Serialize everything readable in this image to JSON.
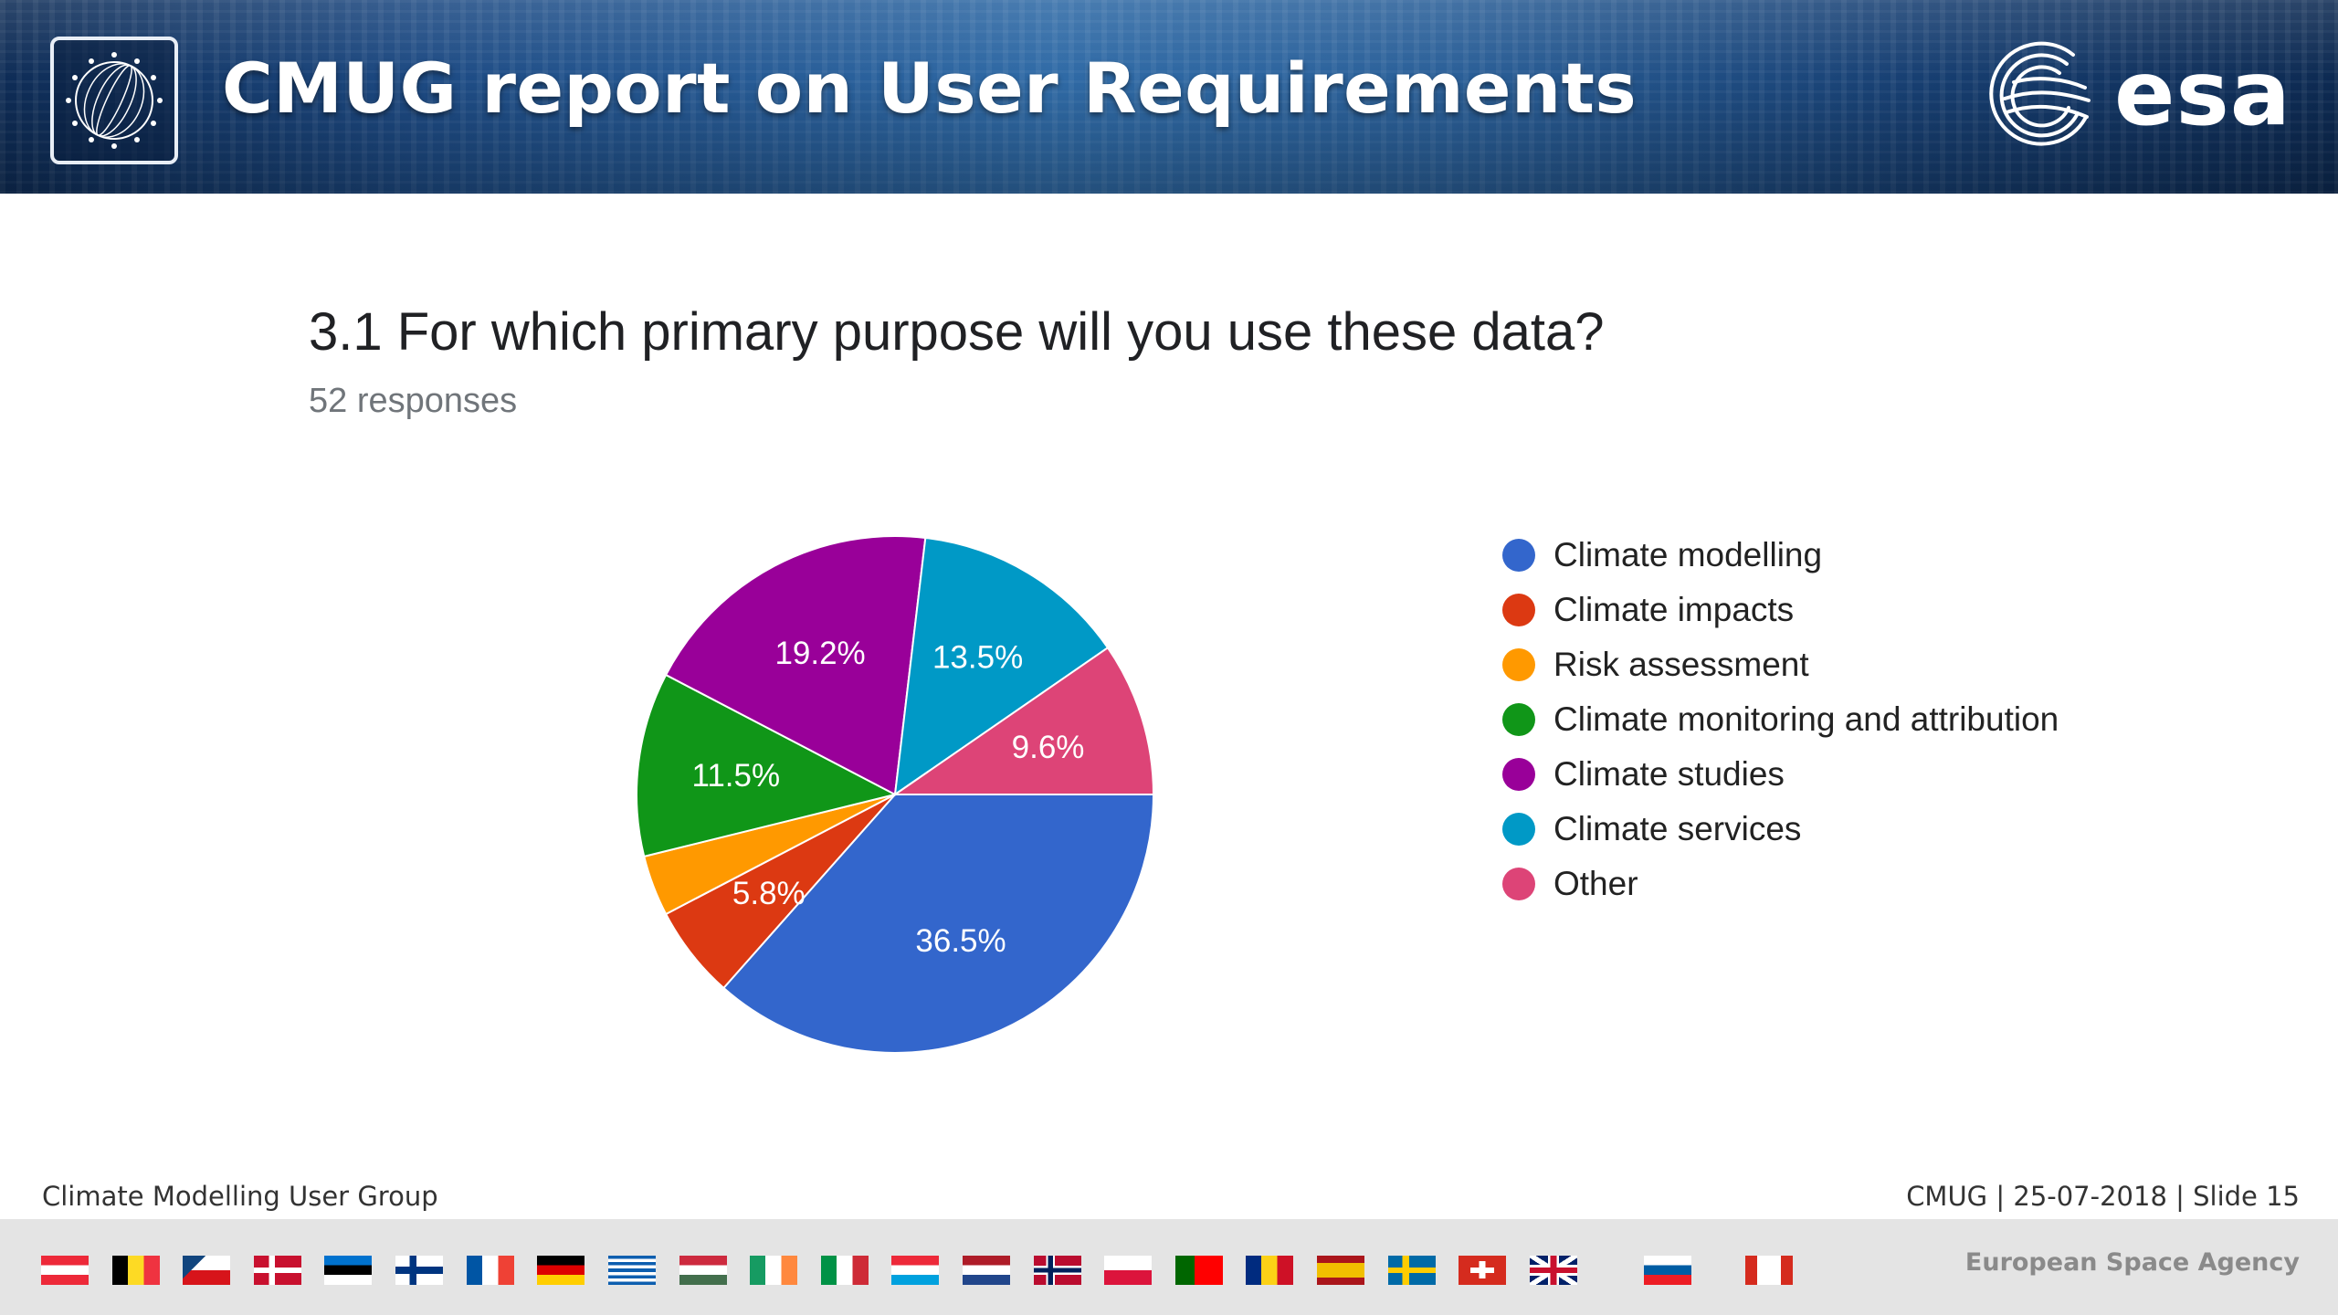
{
  "header": {
    "title": "CMUG report on User Requirements",
    "brand": "esa"
  },
  "question": {
    "title": "3.1 For which primary purpose will you use these data?",
    "responses": "52 responses"
  },
  "chart_data": {
    "type": "pie",
    "start_angle_deg": 90,
    "direction": "clockwise",
    "labels_shown_min_percent": 5,
    "slices": [
      {
        "label": "Climate modelling",
        "percent": 36.5,
        "color": "#3366cc"
      },
      {
        "label": "Climate impacts",
        "percent": 5.8,
        "color": "#dc3912"
      },
      {
        "label": "Risk assessment",
        "percent": 3.8,
        "color": "#ff9900"
      },
      {
        "label": "Climate monitoring and attribution",
        "percent": 11.5,
        "color": "#109618"
      },
      {
        "label": "Climate studies",
        "percent": 19.2,
        "color": "#990099"
      },
      {
        "label": "Climate services",
        "percent": 13.5,
        "color": "#0099c6"
      },
      {
        "label": "Other",
        "percent": 9.6,
        "color": "#dd4477"
      }
    ],
    "legend_position": "right"
  },
  "footer": {
    "left": "Climate Modelling User Group",
    "right": "CMUG | 25-07-2018 | Slide  15",
    "agency": "European Space Agency"
  }
}
